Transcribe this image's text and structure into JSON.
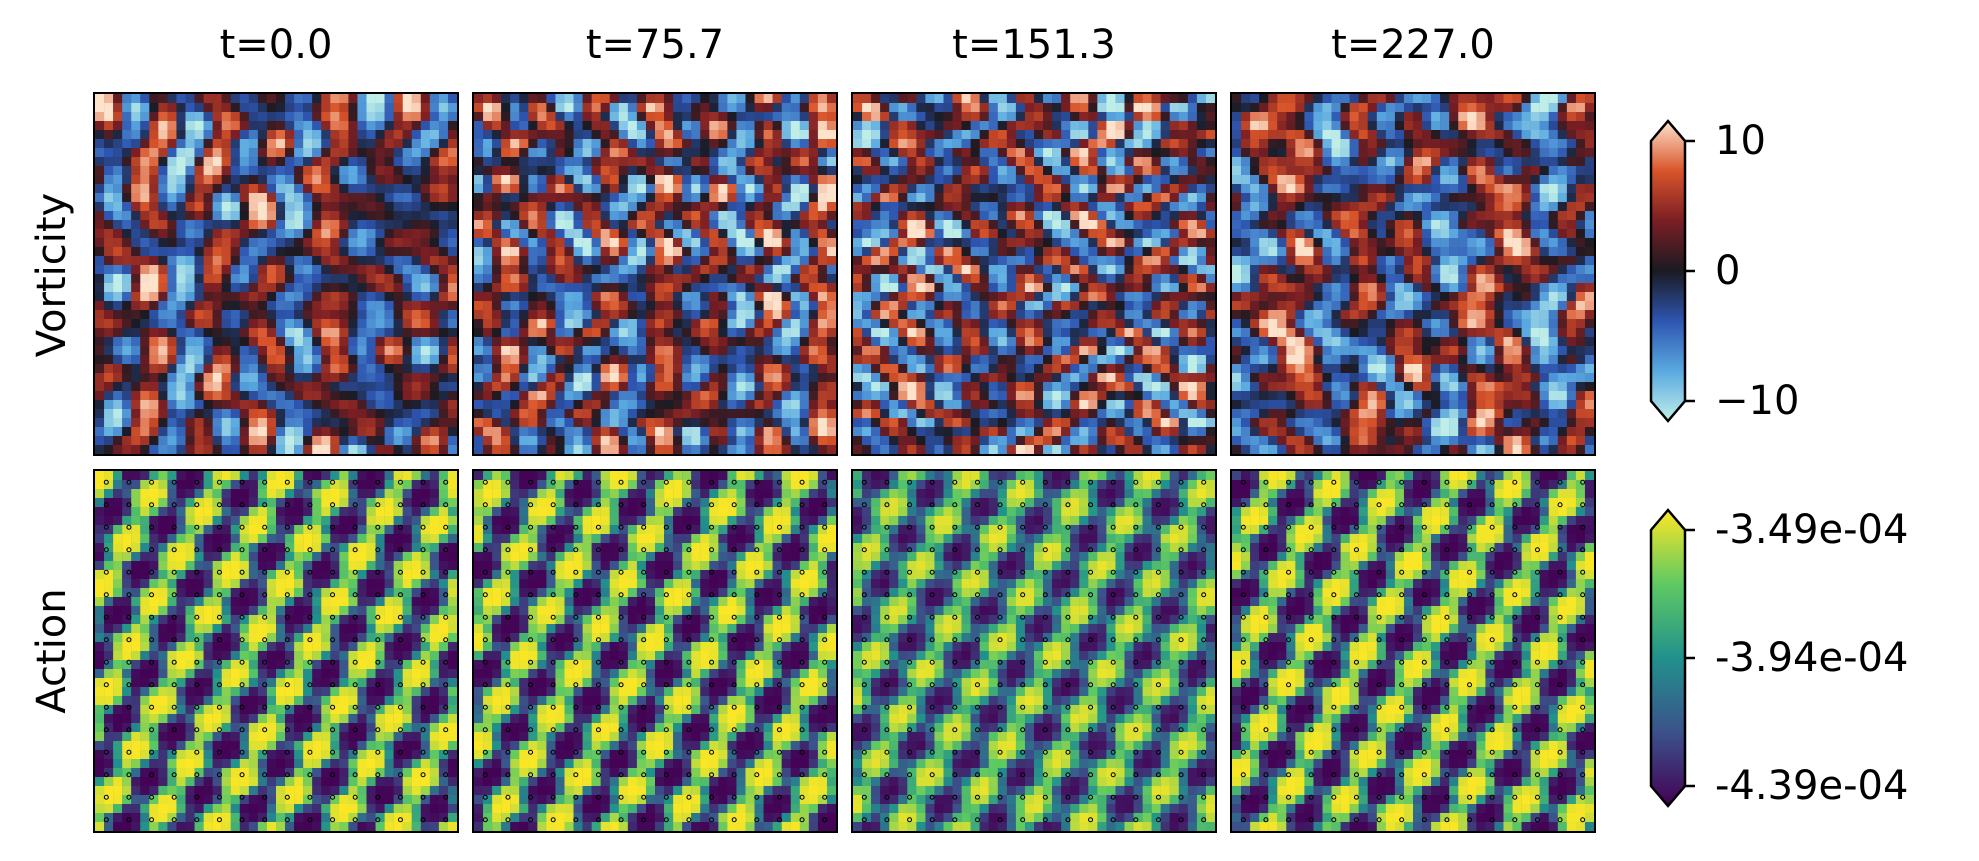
{
  "chart_data": [
    {
      "type": "heatmap",
      "row_label": "Vorticity",
      "panel_titles": [
        "t=0.0",
        "t=75.7",
        "t=151.3",
        "t=227.0"
      ],
      "colormap": "icefire",
      "colorbar": {
        "min": -10,
        "max": 10,
        "ticks": [
          10,
          0,
          -10
        ],
        "tick_labels": [
          "10",
          "0",
          "−10"
        ],
        "extend": "both"
      }
    },
    {
      "type": "heatmap",
      "row_label": "Action",
      "panel_titles": [
        "t=0.0",
        "t=75.7",
        "t=151.3",
        "t=227.0"
      ],
      "colormap": "viridis",
      "markers": "open circles on a regular grid of actuator points",
      "colorbar": {
        "min": -0.000439,
        "max": -0.000349,
        "ticks": [
          -0.000349,
          -0.000394,
          -0.000439
        ],
        "tick_labels": [
          "-3.49e-04",
          "-3.94e-04",
          "-4.39e-04"
        ],
        "extend": "both"
      }
    }
  ],
  "colors": {
    "icefire": [
      "#bfeee8",
      "#5aa9e0",
      "#2e55b0",
      "#1a1a22",
      "#7a1e24",
      "#d8542a",
      "#fde2cc"
    ],
    "viridis": [
      "#440154",
      "#3b528b",
      "#21918c",
      "#5ec962",
      "#fde725"
    ]
  }
}
